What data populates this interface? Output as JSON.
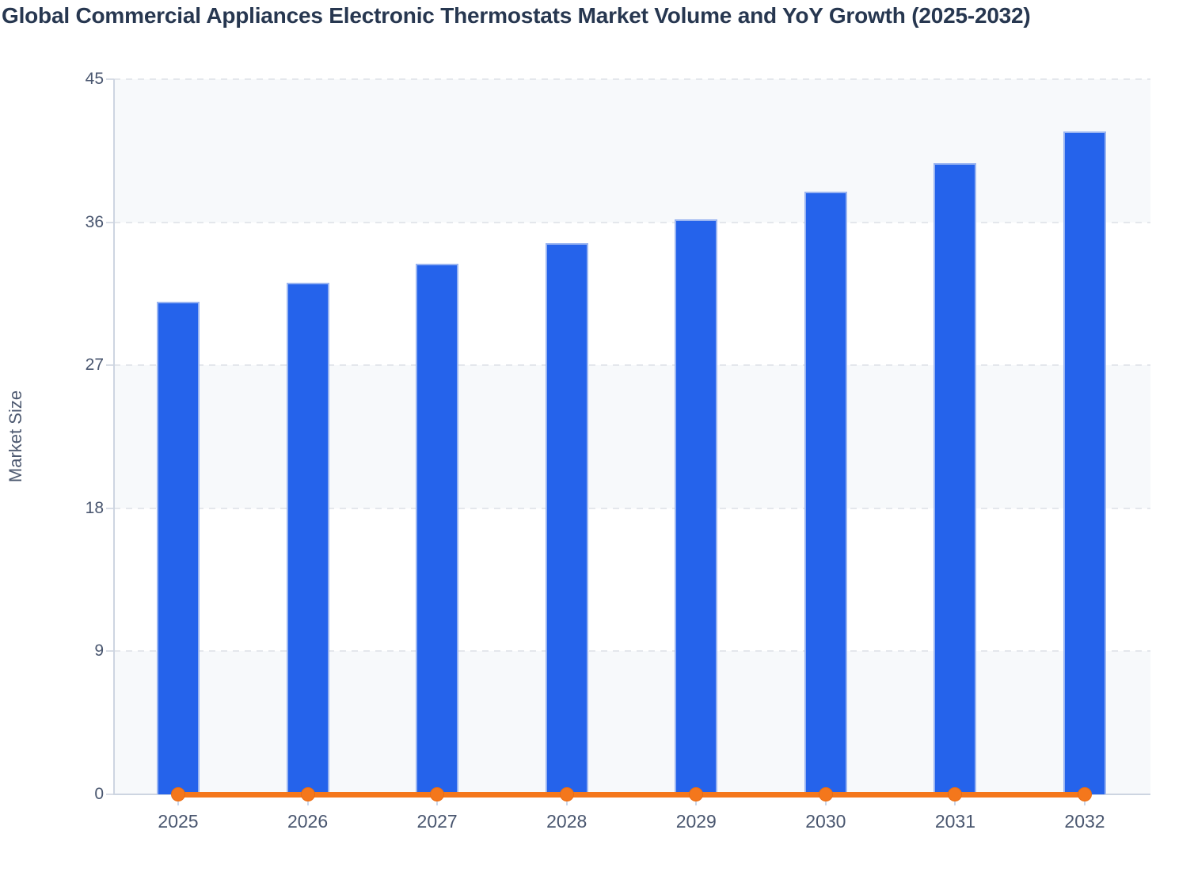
{
  "title": "Global Commercial Appliances Electronic Thermostats Market Volume and YoY Growth (2025-2032)",
  "chart_data": {
    "type": "bar+line",
    "title": "Global Commercial Appliances Electronic Thermostats Market Volume and YoY Growth (2025-2032)",
    "categories": [
      "2025",
      "2026",
      "2027",
      "2028",
      "2029",
      "2030",
      "2031",
      "2032"
    ],
    "series": [
      {
        "name": "Market Volume",
        "type": "bar",
        "color": "#2563eb",
        "values": [
          31.0,
          32.2,
          33.4,
          34.7,
          36.2,
          37.9,
          39.7,
          41.7
        ]
      },
      {
        "name": "YoY Growth",
        "type": "line",
        "color": "#f4771c",
        "values": [
          0,
          0,
          0,
          0,
          0,
          0,
          0,
          0
        ]
      }
    ],
    "xlabel": "",
    "ylabel": "Market Size",
    "ylim": [
      0,
      45
    ],
    "yticks": [
      0,
      9,
      18,
      27,
      36,
      45
    ],
    "grid": "horizontal dashed",
    "plot_bands": "alternating shaded horizontal bands every 9 units",
    "legend": "none"
  },
  "colors": {
    "bar_fill": "#2563eb",
    "bar_border": "#9ab5f1",
    "line": "#f4771c",
    "band": "#f7f9fb",
    "gridline": "#e4e7ec",
    "axis_line": "#cdd5e1",
    "tick_label": "#49566f",
    "title_text": "#273750",
    "axis_title_text": "#4d5970"
  }
}
